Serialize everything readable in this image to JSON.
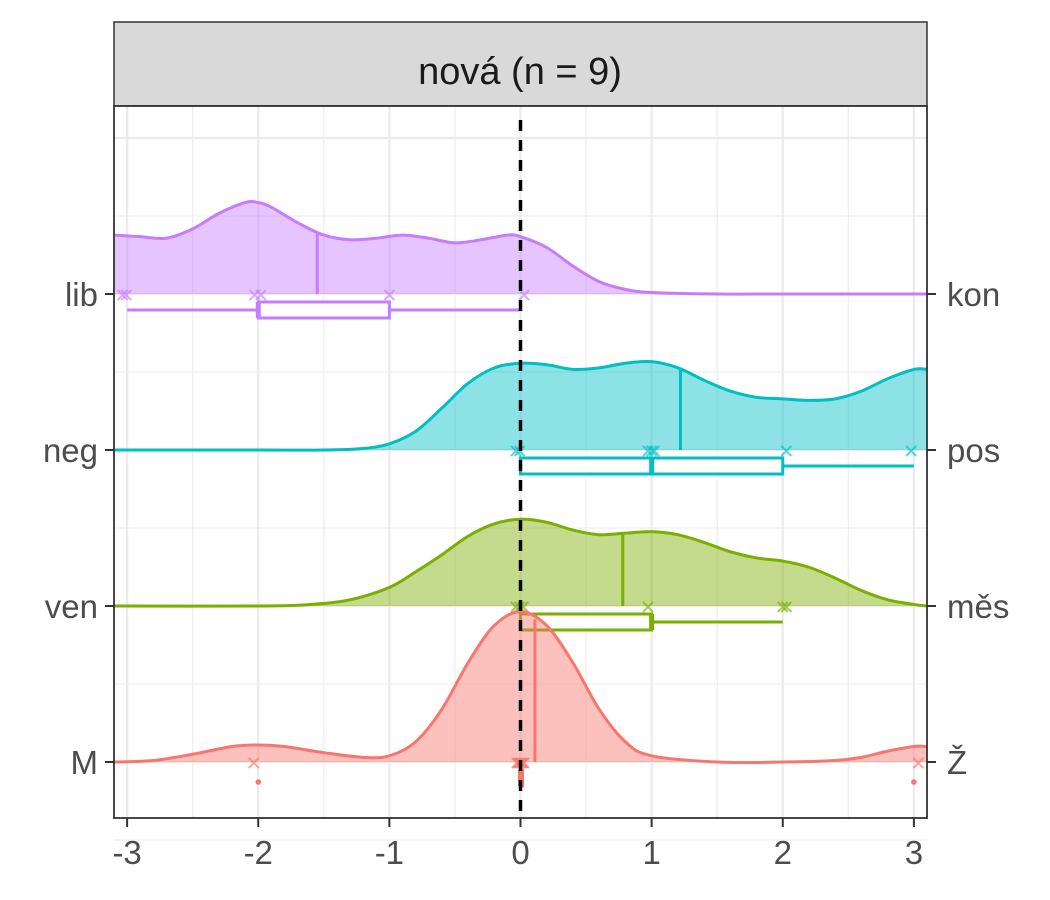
{
  "chart_data": {
    "type": "ridgeline",
    "title": "",
    "facet_label": "nová (n = 9)",
    "xlabel": "",
    "ylabel": "",
    "xlim": [
      -3.1,
      3.1
    ],
    "x_ticks": [
      -3,
      -2,
      -1,
      0,
      1,
      2,
      3
    ],
    "x_tick_labels": [
      "-3",
      "-2",
      "-1",
      "0",
      "1",
      "2",
      "3"
    ],
    "reference_line_x": 0,
    "grid": true,
    "legend": "none",
    "rows": [
      {
        "left_label": "lib",
        "right_label": "kon",
        "color": "#C77CFF",
        "points": [
          -3,
          -3,
          -2,
          -2,
          -1,
          0
        ],
        "mean": -1.55,
        "box": {
          "whisker_low": -3,
          "q1": -2,
          "median": -2,
          "q3": -1,
          "whisker_high": 0
        },
        "outliers": [],
        "density": [
          [
            -3.1,
            0.38
          ],
          [
            -2.9,
            0.37
          ],
          [
            -2.7,
            0.36
          ],
          [
            -2.5,
            0.42
          ],
          [
            -2.3,
            0.52
          ],
          [
            -2.1,
            0.59
          ],
          [
            -2.0,
            0.59
          ],
          [
            -1.9,
            0.56
          ],
          [
            -1.7,
            0.46
          ],
          [
            -1.5,
            0.38
          ],
          [
            -1.3,
            0.35
          ],
          [
            -1.1,
            0.36
          ],
          [
            -0.9,
            0.38
          ],
          [
            -0.7,
            0.36
          ],
          [
            -0.5,
            0.33
          ],
          [
            -0.3,
            0.35
          ],
          [
            -0.1,
            0.38
          ],
          [
            0.0,
            0.37
          ],
          [
            0.2,
            0.3
          ],
          [
            0.4,
            0.18
          ],
          [
            0.6,
            0.08
          ],
          [
            0.8,
            0.03
          ],
          [
            1.0,
            0.01
          ],
          [
            1.5,
            0.0
          ],
          [
            2.0,
            0.0
          ],
          [
            2.5,
            0.0
          ],
          [
            3.1,
            0.0
          ]
        ]
      },
      {
        "left_label": "neg",
        "right_label": "pos",
        "color": "#00BFC4",
        "points": [
          0,
          0,
          1,
          1,
          1,
          2,
          3
        ],
        "mean": 1.22,
        "box": {
          "whisker_low": 0,
          "q1": 0,
          "median": 1,
          "q3": 2,
          "whisker_high": 3
        },
        "outliers": [],
        "density": [
          [
            -3.1,
            0.0
          ],
          [
            -2.0,
            0.0
          ],
          [
            -1.5,
            0.0
          ],
          [
            -1.2,
            0.01
          ],
          [
            -1.0,
            0.04
          ],
          [
            -0.8,
            0.12
          ],
          [
            -0.6,
            0.27
          ],
          [
            -0.4,
            0.43
          ],
          [
            -0.2,
            0.53
          ],
          [
            0.0,
            0.56
          ],
          [
            0.2,
            0.55
          ],
          [
            0.4,
            0.52
          ],
          [
            0.6,
            0.53
          ],
          [
            0.8,
            0.56
          ],
          [
            1.0,
            0.57
          ],
          [
            1.2,
            0.53
          ],
          [
            1.4,
            0.45
          ],
          [
            1.6,
            0.38
          ],
          [
            1.8,
            0.34
          ],
          [
            2.0,
            0.33
          ],
          [
            2.2,
            0.32
          ],
          [
            2.4,
            0.33
          ],
          [
            2.6,
            0.38
          ],
          [
            2.8,
            0.46
          ],
          [
            3.0,
            0.52
          ],
          [
            3.1,
            0.52
          ]
        ]
      },
      {
        "left_label": "ven",
        "right_label": "měs",
        "color": "#7CAE00",
        "points": [
          0,
          0,
          0,
          1,
          2,
          2
        ],
        "mean": 0.78,
        "box": {
          "whisker_low": 0,
          "q1": 0,
          "median": 1,
          "q3": 1,
          "whisker_high": 2
        },
        "outliers": [],
        "density": [
          [
            -3.1,
            0.0
          ],
          [
            -2.0,
            0.0
          ],
          [
            -1.6,
            0.01
          ],
          [
            -1.3,
            0.04
          ],
          [
            -1.0,
            0.12
          ],
          [
            -0.8,
            0.22
          ],
          [
            -0.6,
            0.33
          ],
          [
            -0.4,
            0.45
          ],
          [
            -0.2,
            0.53
          ],
          [
            0.0,
            0.56
          ],
          [
            0.2,
            0.54
          ],
          [
            0.4,
            0.49
          ],
          [
            0.6,
            0.46
          ],
          [
            0.8,
            0.47
          ],
          [
            1.0,
            0.48
          ],
          [
            1.2,
            0.46
          ],
          [
            1.4,
            0.41
          ],
          [
            1.6,
            0.35
          ],
          [
            1.8,
            0.31
          ],
          [
            2.0,
            0.29
          ],
          [
            2.2,
            0.25
          ],
          [
            2.4,
            0.18
          ],
          [
            2.6,
            0.1
          ],
          [
            2.8,
            0.04
          ],
          [
            3.0,
            0.01
          ],
          [
            3.1,
            0.0
          ]
        ]
      },
      {
        "left_label": "M",
        "right_label": "Ž",
        "color": "#F8766D",
        "points": [
          -2,
          0,
          0,
          0,
          0,
          0,
          0,
          0,
          3
        ],
        "mean": 0.11,
        "box": {
          "whisker_low": 0,
          "q1": 0,
          "median": 0,
          "q3": 0,
          "whisker_high": 0
        },
        "outliers": [
          -2,
          3
        ],
        "density": [
          [
            -3.1,
            0.0
          ],
          [
            -2.8,
            0.01
          ],
          [
            -2.5,
            0.05
          ],
          [
            -2.2,
            0.1
          ],
          [
            -2.0,
            0.11
          ],
          [
            -1.8,
            0.1
          ],
          [
            -1.5,
            0.06
          ],
          [
            -1.2,
            0.03
          ],
          [
            -1.0,
            0.04
          ],
          [
            -0.8,
            0.13
          ],
          [
            -0.6,
            0.34
          ],
          [
            -0.4,
            0.64
          ],
          [
            -0.2,
            0.88
          ],
          [
            0.0,
            0.97
          ],
          [
            0.2,
            0.88
          ],
          [
            0.4,
            0.64
          ],
          [
            0.6,
            0.34
          ],
          [
            0.8,
            0.13
          ],
          [
            1.0,
            0.04
          ],
          [
            1.5,
            0.0
          ],
          [
            2.0,
            0.0
          ],
          [
            2.4,
            0.01
          ],
          [
            2.6,
            0.03
          ],
          [
            2.8,
            0.07
          ],
          [
            3.0,
            0.1
          ],
          [
            3.1,
            0.1
          ]
        ]
      }
    ]
  }
}
